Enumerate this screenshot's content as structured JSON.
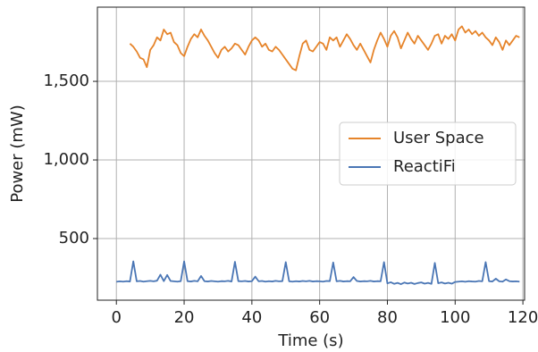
{
  "chart_data": {
    "type": "line",
    "xlabel": "Time (s)",
    "ylabel": "Power (mW)",
    "xlim": [
      -5.6,
      120.5
    ],
    "ylim": [
      108,
      1972
    ],
    "xticks": [
      0,
      20,
      40,
      60,
      80,
      100,
      120
    ],
    "yticks": [
      {
        "value": 500,
        "label": "500"
      },
      {
        "value": 1000,
        "label": "1,000"
      },
      {
        "value": 1500,
        "label": "1,500"
      }
    ],
    "grid": true,
    "legend": "center right",
    "series": [
      {
        "name": "User Space",
        "color": "#e6842a",
        "x": [
          4,
          5,
          6,
          7,
          8,
          9,
          10,
          11,
          12,
          13,
          14,
          15,
          16,
          17,
          18,
          19,
          20,
          21,
          22,
          23,
          24,
          25,
          26,
          27,
          28,
          29,
          30,
          31,
          32,
          33,
          34,
          35,
          36,
          37,
          38,
          39,
          40,
          41,
          42,
          43,
          44,
          45,
          46,
          47,
          48,
          49,
          50,
          51,
          52,
          53,
          54,
          55,
          56,
          57,
          58,
          59,
          60,
          61,
          62,
          63,
          64,
          65,
          66,
          67,
          68,
          69,
          70,
          71,
          72,
          73,
          74,
          75,
          76,
          77,
          78,
          79,
          80,
          81,
          82,
          83,
          84,
          85,
          86,
          87,
          88,
          89,
          90,
          91,
          92,
          93,
          94,
          95,
          96,
          97,
          98,
          99,
          100,
          101,
          102,
          103,
          104,
          105,
          106,
          107,
          108,
          109,
          110,
          111,
          112,
          113,
          114,
          115,
          116,
          117,
          118,
          119
        ],
        "values": [
          1740,
          1720,
          1690,
          1650,
          1640,
          1590,
          1700,
          1730,
          1780,
          1760,
          1830,
          1800,
          1810,
          1750,
          1730,
          1680,
          1660,
          1720,
          1770,
          1800,
          1780,
          1830,
          1790,
          1760,
          1720,
          1680,
          1650,
          1700,
          1720,
          1690,
          1710,
          1740,
          1730,
          1700,
          1670,
          1720,
          1760,
          1780,
          1760,
          1720,
          1740,
          1700,
          1690,
          1720,
          1700,
          1670,
          1640,
          1610,
          1580,
          1570,
          1660,
          1740,
          1760,
          1700,
          1690,
          1720,
          1750,
          1740,
          1700,
          1780,
          1760,
          1780,
          1720,
          1760,
          1800,
          1770,
          1730,
          1700,
          1740,
          1700,
          1660,
          1620,
          1700,
          1760,
          1810,
          1770,
          1720,
          1790,
          1820,
          1780,
          1710,
          1760,
          1810,
          1770,
          1740,
          1790,
          1760,
          1730,
          1700,
          1740,
          1790,
          1800,
          1740,
          1790,
          1770,
          1800,
          1760,
          1830,
          1850,
          1810,
          1830,
          1800,
          1820,
          1790,
          1810,
          1780,
          1760,
          1730,
          1780,
          1750,
          1700,
          1760,
          1730,
          1760,
          1790,
          1780
        ]
      },
      {
        "name": "ReactiFi",
        "color": "#4a76b5",
        "x": [
          0,
          1,
          2,
          3,
          4,
          5,
          6,
          7,
          8,
          9,
          10,
          11,
          12,
          13,
          14,
          15,
          16,
          17,
          18,
          19,
          20,
          21,
          22,
          23,
          24,
          25,
          26,
          27,
          28,
          29,
          30,
          31,
          32,
          33,
          34,
          35,
          36,
          37,
          38,
          39,
          40,
          41,
          42,
          43,
          44,
          45,
          46,
          47,
          48,
          49,
          50,
          51,
          52,
          53,
          54,
          55,
          56,
          57,
          58,
          59,
          60,
          61,
          62,
          63,
          64,
          65,
          66,
          67,
          68,
          69,
          70,
          71,
          72,
          73,
          74,
          75,
          76,
          77,
          78,
          79,
          80,
          81,
          82,
          83,
          84,
          85,
          86,
          87,
          88,
          89,
          90,
          91,
          92,
          93,
          94,
          95,
          96,
          97,
          98,
          99,
          100,
          101,
          102,
          103,
          104,
          105,
          106,
          107,
          108,
          109,
          110,
          111,
          112,
          113,
          114,
          115,
          116,
          117,
          118,
          119
        ],
        "values": [
          225,
          228,
          226,
          229,
          227,
          355,
          228,
          230,
          226,
          229,
          231,
          228,
          232,
          270,
          229,
          268,
          230,
          228,
          226,
          229,
          355,
          229,
          227,
          231,
          228,
          262,
          229,
          227,
          230,
          228,
          226,
          229,
          228,
          231,
          227,
          352,
          229,
          228,
          230,
          227,
          229,
          258,
          228,
          230,
          226,
          229,
          227,
          231,
          228,
          229,
          350,
          228,
          226,
          229,
          227,
          230,
          228,
          231,
          227,
          229,
          228,
          226,
          230,
          229,
          348,
          228,
          231,
          227,
          229,
          228,
          255,
          230,
          227,
          229,
          228,
          231,
          227,
          229,
          228,
          350,
          215,
          222,
          212,
          218,
          210,
          220,
          214,
          219,
          211,
          217,
          221,
          213,
          218,
          212,
          345,
          216,
          221,
          214,
          219,
          213,
          224,
          226,
          228,
          225,
          229,
          227,
          226,
          230,
          228,
          350,
          229,
          227,
          245,
          228,
          226,
          240,
          229,
          227,
          228,
          226
        ]
      }
    ]
  }
}
